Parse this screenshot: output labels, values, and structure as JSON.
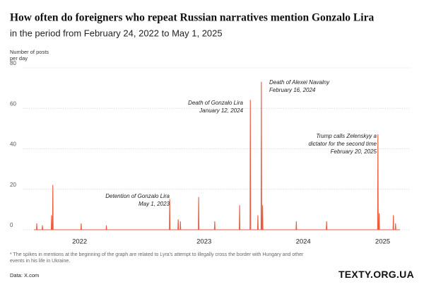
{
  "chart_data": {
    "type": "line",
    "title": "How often do foreigners who repeat Russian narratives mention Gonzalo Lira",
    "subtitle": "in the period from February 24, 2022 to May 1, 2025",
    "y_label": [
      "Number of posts",
      "per day"
    ],
    "footnote": "* The spikes in mentions at the beginning of the graph are related to Lyra's attempt to illegally cross the border with Hungary and other events in his life in Ukraine.",
    "source": "Data: X.com",
    "brand": "TEXTY.ORG.UA",
    "x": [
      "2022-02-24",
      "2022-03-04",
      "2022-03-05",
      "2022-03-06",
      "2022-03-22",
      "2022-03-23",
      "2022-03-24",
      "2022-04-20",
      "2022-04-21",
      "2022-04-22",
      "2022-04-24",
      "2022-04-25",
      "2022-04-26",
      "2022-07-23",
      "2022-07-24",
      "2022-07-25",
      "2022-10-11",
      "2022-10-12",
      "2022-10-13",
      "2023-04-30",
      "2023-05-01",
      "2023-05-02",
      "2023-05-27",
      "2023-05-28",
      "2023-05-29",
      "2023-06-03",
      "2023-06-04",
      "2023-06-05",
      "2023-07-31",
      "2023-08-01",
      "2023-08-02",
      "2023-09-20",
      "2023-09-21",
      "2023-09-22",
      "2023-12-08",
      "2023-12-09",
      "2023-12-10",
      "2024-01-11",
      "2024-01-12",
      "2024-01-13",
      "2024-02-04",
      "2024-02-05",
      "2024-02-06",
      "2024-02-15",
      "2024-02-16",
      "2024-02-17",
      "2024-02-19",
      "2024-02-20",
      "2024-02-21",
      "2024-06-05",
      "2024-06-06",
      "2024-06-07",
      "2024-09-09",
      "2024-09-10",
      "2024-09-11",
      "2025-02-19",
      "2025-02-20",
      "2025-02-21",
      "2025-02-23",
      "2025-02-24",
      "2025-02-25",
      "2025-04-09",
      "2025-04-10",
      "2025-04-11",
      "2025-04-16",
      "2025-04-17",
      "2025-04-18",
      "2025-05-01"
    ],
    "series": [
      {
        "name": "Posts per day",
        "color": "#ea5a3d",
        "values": [
          0,
          0,
          3,
          0,
          0,
          2,
          0,
          0,
          7,
          0,
          0,
          22,
          0,
          0,
          3,
          0,
          0,
          2,
          0,
          0,
          15,
          0,
          0,
          5,
          0,
          0,
          4,
          0,
          0,
          16,
          0,
          0,
          4,
          0,
          0,
          12,
          0,
          0,
          64,
          0,
          0,
          7,
          0,
          0,
          73,
          0,
          0,
          12,
          0,
          0,
          4,
          0,
          0,
          4,
          0,
          0,
          47,
          0,
          0,
          8,
          0,
          0,
          7,
          0,
          0,
          3,
          0,
          0
        ]
      }
    ],
    "xlim": [
      "2022-02-24",
      "2025-05-01"
    ],
    "xticks": [
      {
        "value": "2022-07-19",
        "label": "2022"
      },
      {
        "value": "2023-08-18",
        "label": "2023"
      },
      {
        "value": "2024-06-28",
        "label": "2024"
      },
      {
        "value": "2025-03-07",
        "label": "2025"
      }
    ],
    "ylim": [
      0,
      80
    ],
    "yticks": [
      0,
      20,
      40,
      60,
      80
    ],
    "grid": true,
    "annotations": [
      {
        "lines": [
          "Detention of Gonzalo Lira",
          "May 1, 2023"
        ]
      },
      {
        "lines": [
          "Death of Gonzalo Lira",
          "January 12, 2024"
        ]
      },
      {
        "lines": [
          "Death of Alexei Navalny",
          "February 16, 2024"
        ]
      },
      {
        "lines": [
          "Trump calls Zelenskyy a",
          "dictator for the second time",
          "February 20, 2025"
        ]
      }
    ]
  }
}
